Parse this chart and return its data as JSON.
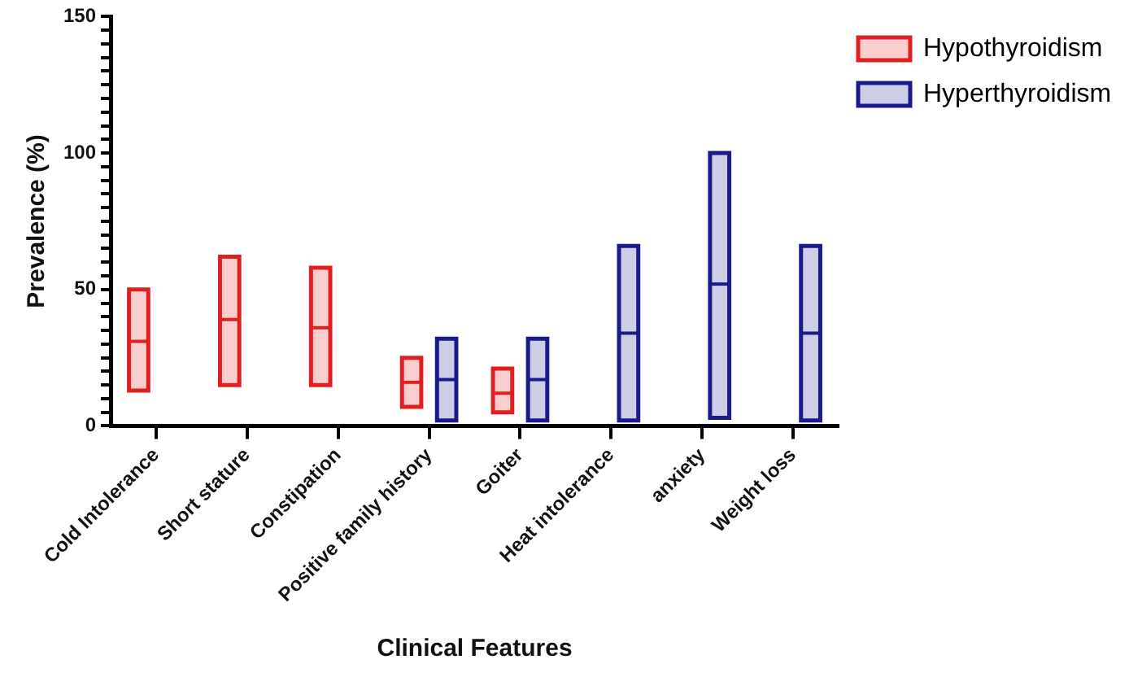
{
  "chart_data": {
    "type": "box",
    "ylabel": "Prevalence (%)",
    "xlabel": "Clinical Features",
    "categories": [
      "Cold Intolerance",
      "Short stature",
      "Constipation",
      "Positive family history",
      "Goiter",
      "Heat intolerance",
      "anxiety",
      "Weight loss"
    ],
    "series": [
      {
        "name": "Hypothyroidism",
        "color": "#e02020",
        "x": [
          "Cold Intolerance",
          "Short stature",
          "Constipation",
          "Positive family history",
          "Goiter"
        ],
        "boxes": [
          {
            "low": 13,
            "q1": 13,
            "median": 31,
            "q3": 50,
            "high": 50
          },
          {
            "low": 15,
            "q1": 15,
            "median": 39,
            "q3": 62,
            "high": 62
          },
          {
            "low": 15,
            "q1": 15,
            "median": 36,
            "q3": 58,
            "high": 58
          },
          {
            "low": 7,
            "q1": 7,
            "median": 16,
            "q3": 25,
            "high": 25
          },
          {
            "low": 5,
            "q1": 5,
            "median": 12,
            "q3": 21,
            "high": 21
          }
        ]
      },
      {
        "name": "Hyperthyroidism",
        "color": "#1a1a8c",
        "x": [
          "Positive family history",
          "Goiter",
          "Heat intolerance",
          "anxiety",
          "Weight loss"
        ],
        "boxes": [
          {
            "low": 2,
            "q1": 2,
            "median": 17,
            "q3": 32,
            "high": 32
          },
          {
            "low": 2,
            "q1": 2,
            "median": 17,
            "q3": 32,
            "high": 32
          },
          {
            "low": 2,
            "q1": 2,
            "median": 34,
            "q3": 66,
            "high": 66
          },
          {
            "low": 3,
            "q1": 3,
            "median": 52,
            "q3": 100,
            "high": 100
          },
          {
            "low": 2,
            "q1": 2,
            "median": 34,
            "q3": 66,
            "high": 66
          }
        ]
      }
    ],
    "ylim": [
      0,
      150
    ],
    "yticks": [
      0,
      {
        "value": 5,
        "label": null
      },
      {
        "value": 10,
        "label": null
      },
      {
        "value": 15,
        "label": null
      },
      {
        "value": 20,
        "label": null
      },
      {
        "value": 25,
        "label": null
      },
      {
        "value": 30,
        "label": null
      },
      {
        "value": 35,
        "label": null
      },
      {
        "value": 40,
        "label": null
      },
      {
        "value": 45,
        "label": null
      },
      50,
      {
        "value": 55,
        "label": null
      },
      {
        "value": 60,
        "label": null
      },
      {
        "value": 65,
        "label": null
      },
      {
        "value": 70,
        "label": null
      },
      {
        "value": 75,
        "label": null
      },
      {
        "value": 80,
        "label": null
      },
      {
        "value": 85,
        "label": null
      },
      {
        "value": 90,
        "label": null
      },
      {
        "value": 95,
        "label": null
      },
      100,
      {
        "value": 105,
        "label": null
      },
      {
        "value": 110,
        "label": null
      },
      {
        "value": 115,
        "label": null
      },
      {
        "value": 120,
        "label": null
      },
      {
        "value": 125,
        "label": null
      },
      {
        "value": 130,
        "label": null
      },
      {
        "value": 135,
        "label": null
      },
      {
        "value": 140,
        "label": null
      },
      {
        "value": 145,
        "label": null
      },
      150
    ],
    "grid": false,
    "legend": "top right"
  }
}
